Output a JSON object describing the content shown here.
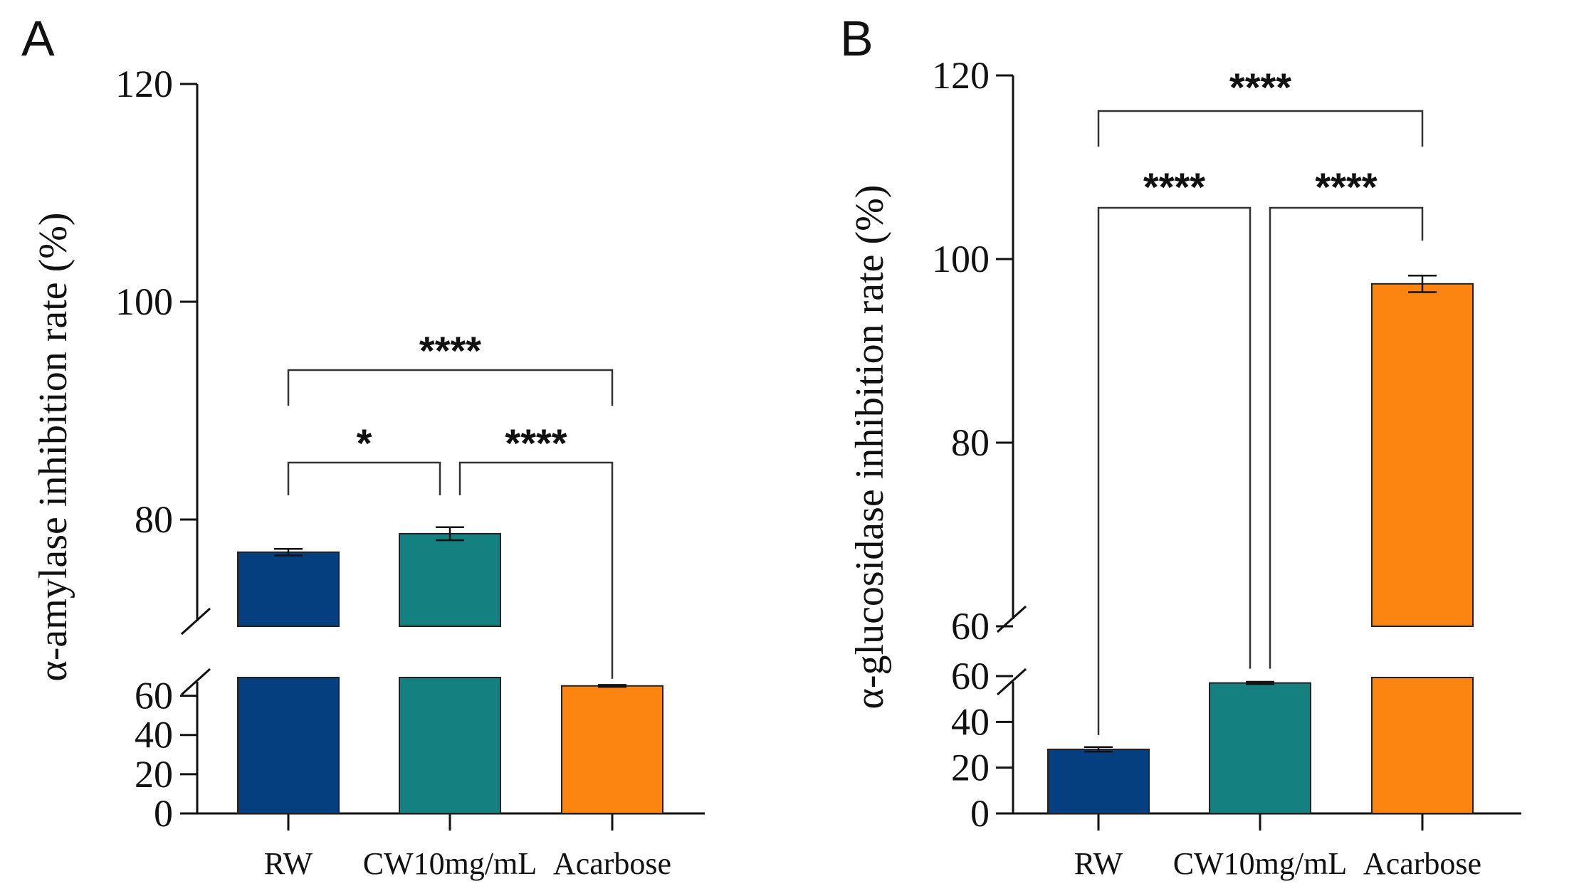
{
  "chart_data": [
    {
      "panel": "A",
      "type": "bar",
      "ylabel": "α-amylase inhibition rate (%)",
      "categories": [
        "RW",
        "CW10mg/mL",
        "Acarbose"
      ],
      "values": [
        77.0,
        78.7,
        65.0
      ],
      "errors": [
        0.3,
        0.6,
        0.5
      ],
      "colors": [
        "#063F80",
        "#148080",
        "#FC8411"
      ],
      "y_broken": true,
      "ylim_lower": [
        0,
        70
      ],
      "ylim_upper": [
        70,
        120
      ],
      "yticks_lower": [
        0,
        20,
        40,
        60
      ],
      "yticks_upper": [
        80,
        100,
        120
      ],
      "comparisons": [
        {
          "from": 0,
          "to": 1,
          "label": "*"
        },
        {
          "from": 1,
          "to": 2,
          "label": "****"
        },
        {
          "from": 0,
          "to": 2,
          "label": "****"
        }
      ]
    },
    {
      "panel": "B",
      "type": "bar",
      "ylabel": "α-glucosidase inhibition rate (%)",
      "categories": [
        "RW",
        "CW10mg/mL",
        "Acarbose"
      ],
      "values": [
        28.0,
        57.0,
        97.3
      ],
      "errors": [
        1.0,
        0.5,
        0.9
      ],
      "colors": [
        "#063F80",
        "#148080",
        "#FC8411"
      ],
      "y_broken": true,
      "ylim_lower": [
        0,
        60
      ],
      "ylim_upper": [
        60,
        120
      ],
      "yticks_lower": [
        0,
        20,
        40,
        60
      ],
      "yticks_upper": [
        60,
        80,
        100,
        120
      ],
      "comparisons": [
        {
          "from": 0,
          "to": 1,
          "label": "****"
        },
        {
          "from": 1,
          "to": 2,
          "label": "****"
        },
        {
          "from": 0,
          "to": 2,
          "label": "****"
        }
      ]
    }
  ]
}
